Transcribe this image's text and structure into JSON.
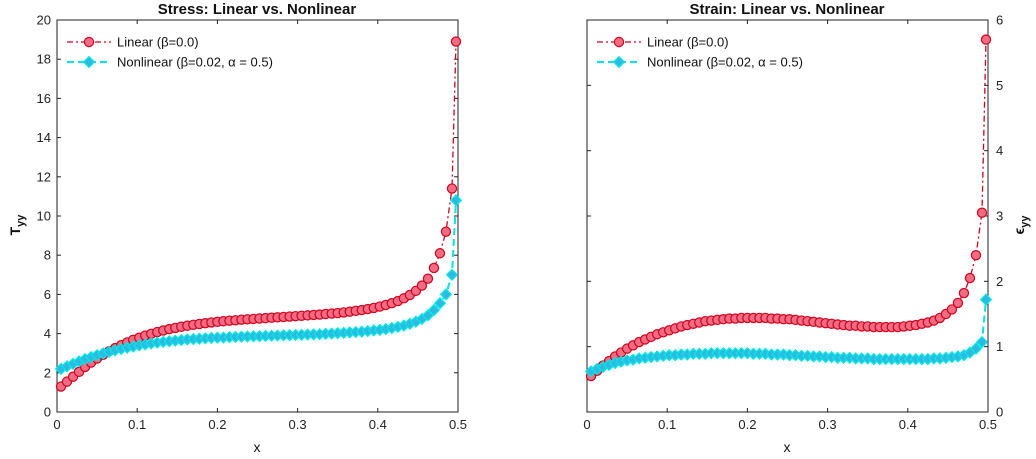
{
  "chart_data": [
    {
      "type": "line",
      "title": "Stress: Linear vs. Nonlinear",
      "xlabel": "x",
      "ylabel": "T",
      "ylabel_sub": "yy",
      "xlim": [
        0,
        0.5
      ],
      "ylim": [
        0,
        20
      ],
      "xticks": [
        "0",
        "0.1",
        "0.2",
        "0.3",
        "0.4",
        "0.5"
      ],
      "yticks": [
        "0",
        "2",
        "4",
        "6",
        "8",
        "10",
        "12",
        "14",
        "16",
        "18",
        "20"
      ],
      "legend_position": "top-left",
      "grid": false,
      "y_axis_side": "left",
      "series": [
        {
          "name": "Linear (β=0.0)",
          "color": "#d0021b",
          "marker_fill": "#f06c84",
          "marker": "circle",
          "line_style": "dash-dot",
          "x": [
            0.005,
            0.0125,
            0.02,
            0.0275,
            0.035,
            0.0425,
            0.05,
            0.0575,
            0.065,
            0.0725,
            0.08,
            0.0875,
            0.095,
            0.1025,
            0.11,
            0.1175,
            0.125,
            0.1325,
            0.14,
            0.1475,
            0.155,
            0.1625,
            0.17,
            0.1775,
            0.185,
            0.1925,
            0.2,
            0.2075,
            0.215,
            0.2225,
            0.23,
            0.2375,
            0.245,
            0.2525,
            0.26,
            0.2675,
            0.275,
            0.2825,
            0.29,
            0.2975,
            0.305,
            0.3125,
            0.32,
            0.3275,
            0.335,
            0.3425,
            0.35,
            0.3575,
            0.365,
            0.3725,
            0.38,
            0.3875,
            0.395,
            0.4025,
            0.41,
            0.4175,
            0.425,
            0.4325,
            0.44,
            0.4475,
            0.455,
            0.4625,
            0.47,
            0.4775,
            0.485,
            0.4925,
            0.4975
          ],
          "y": [
            1.3,
            1.55,
            1.8,
            2.05,
            2.3,
            2.52,
            2.73,
            2.92,
            3.1,
            3.26,
            3.41,
            3.55,
            3.68,
            3.79,
            3.9,
            3.99,
            4.08,
            4.16,
            4.23,
            4.29,
            4.35,
            4.4,
            4.45,
            4.49,
            4.53,
            4.57,
            4.6,
            4.63,
            4.66,
            4.68,
            4.71,
            4.73,
            4.75,
            4.77,
            4.79,
            4.81,
            4.83,
            4.85,
            4.87,
            4.89,
            4.91,
            4.93,
            4.95,
            4.97,
            5.0,
            5.02,
            5.05,
            5.08,
            5.12,
            5.16,
            5.2,
            5.25,
            5.31,
            5.38,
            5.46,
            5.55,
            5.66,
            5.8,
            5.97,
            6.18,
            6.45,
            6.8,
            7.35,
            8.1,
            9.2,
            11.4,
            18.9
          ]
        },
        {
          "name": "Nonlinear (β=0.02, α = 0.5)",
          "color": "#00e5e5",
          "marker_fill": "#30b8e0",
          "marker": "diamond",
          "line_style": "dashed",
          "x": [
            0.005,
            0.0125,
            0.02,
            0.0275,
            0.035,
            0.0425,
            0.05,
            0.0575,
            0.065,
            0.0725,
            0.08,
            0.0875,
            0.095,
            0.1025,
            0.11,
            0.1175,
            0.125,
            0.1325,
            0.14,
            0.1475,
            0.155,
            0.1625,
            0.17,
            0.1775,
            0.185,
            0.1925,
            0.2,
            0.2075,
            0.215,
            0.2225,
            0.23,
            0.2375,
            0.245,
            0.2525,
            0.26,
            0.2675,
            0.275,
            0.2825,
            0.29,
            0.2975,
            0.305,
            0.3125,
            0.32,
            0.3275,
            0.335,
            0.3425,
            0.35,
            0.3575,
            0.365,
            0.3725,
            0.38,
            0.3875,
            0.395,
            0.4025,
            0.41,
            0.4175,
            0.425,
            0.4325,
            0.44,
            0.4475,
            0.455,
            0.4625,
            0.47,
            0.4775,
            0.485,
            0.4925,
            0.4975
          ],
          "y": [
            2.2,
            2.33,
            2.46,
            2.58,
            2.7,
            2.8,
            2.9,
            2.99,
            3.07,
            3.15,
            3.22,
            3.28,
            3.34,
            3.4,
            3.45,
            3.5,
            3.54,
            3.58,
            3.61,
            3.64,
            3.67,
            3.7,
            3.72,
            3.74,
            3.76,
            3.78,
            3.79,
            3.8,
            3.82,
            3.83,
            3.84,
            3.85,
            3.86,
            3.87,
            3.88,
            3.89,
            3.9,
            3.91,
            3.92,
            3.93,
            3.94,
            3.95,
            3.96,
            3.97,
            3.99,
            4.0,
            4.02,
            4.04,
            4.06,
            4.08,
            4.1,
            4.13,
            4.16,
            4.19,
            4.23,
            4.28,
            4.34,
            4.41,
            4.5,
            4.61,
            4.75,
            4.93,
            5.2,
            5.55,
            6.0,
            7.0,
            10.8
          ]
        }
      ]
    },
    {
      "type": "line",
      "title": "Strain: Linear vs. Nonlinear",
      "xlabel": "x",
      "ylabel": "ϵ",
      "ylabel_sub": "yy",
      "xlim": [
        0,
        0.5
      ],
      "ylim": [
        0,
        6
      ],
      "xticks": [
        "0",
        "0.1",
        "0.2",
        "0.3",
        "0.4",
        "0.5"
      ],
      "yticks": [
        "0",
        "1",
        "2",
        "3",
        "4",
        "5",
        "6"
      ],
      "legend_position": "top-left",
      "grid": false,
      "y_axis_side": "right",
      "series": [
        {
          "name": "Linear (β=0.0)",
          "color": "#d0021b",
          "marker_fill": "#f06c84",
          "marker": "circle",
          "line_style": "dash-dot",
          "x": [
            0.005,
            0.0125,
            0.02,
            0.0275,
            0.035,
            0.0425,
            0.05,
            0.0575,
            0.065,
            0.0725,
            0.08,
            0.0875,
            0.095,
            0.1025,
            0.11,
            0.1175,
            0.125,
            0.1325,
            0.14,
            0.1475,
            0.155,
            0.1625,
            0.17,
            0.1775,
            0.185,
            0.1925,
            0.2,
            0.2075,
            0.215,
            0.2225,
            0.23,
            0.2375,
            0.245,
            0.2525,
            0.26,
            0.2675,
            0.275,
            0.2825,
            0.29,
            0.2975,
            0.305,
            0.3125,
            0.32,
            0.3275,
            0.335,
            0.3425,
            0.35,
            0.3575,
            0.365,
            0.3725,
            0.38,
            0.3875,
            0.395,
            0.4025,
            0.41,
            0.4175,
            0.425,
            0.4325,
            0.44,
            0.4475,
            0.455,
            0.4625,
            0.47,
            0.4775,
            0.485,
            0.4925,
            0.4975
          ],
          "y": [
            0.55,
            0.63,
            0.71,
            0.78,
            0.85,
            0.91,
            0.97,
            1.02,
            1.07,
            1.11,
            1.15,
            1.19,
            1.22,
            1.25,
            1.28,
            1.31,
            1.33,
            1.35,
            1.37,
            1.39,
            1.4,
            1.41,
            1.42,
            1.43,
            1.43,
            1.44,
            1.44,
            1.44,
            1.44,
            1.44,
            1.43,
            1.43,
            1.42,
            1.42,
            1.41,
            1.4,
            1.39,
            1.38,
            1.37,
            1.36,
            1.35,
            1.34,
            1.33,
            1.32,
            1.32,
            1.31,
            1.31,
            1.3,
            1.3,
            1.3,
            1.3,
            1.3,
            1.31,
            1.32,
            1.33,
            1.35,
            1.37,
            1.4,
            1.44,
            1.5,
            1.57,
            1.67,
            1.82,
            2.05,
            2.4,
            3.05,
            5.7
          ]
        },
        {
          "name": "Nonlinear (β=0.02, α = 0.5)",
          "color": "#00e5e5",
          "marker_fill": "#30b8e0",
          "marker": "diamond",
          "line_style": "dashed",
          "x": [
            0.005,
            0.0125,
            0.02,
            0.0275,
            0.035,
            0.0425,
            0.05,
            0.0575,
            0.065,
            0.0725,
            0.08,
            0.0875,
            0.095,
            0.1025,
            0.11,
            0.1175,
            0.125,
            0.1325,
            0.14,
            0.1475,
            0.155,
            0.1625,
            0.17,
            0.1775,
            0.185,
            0.1925,
            0.2,
            0.2075,
            0.215,
            0.2225,
            0.23,
            0.2375,
            0.245,
            0.2525,
            0.26,
            0.2675,
            0.275,
            0.2825,
            0.29,
            0.2975,
            0.305,
            0.3125,
            0.32,
            0.3275,
            0.335,
            0.3425,
            0.35,
            0.3575,
            0.365,
            0.3725,
            0.38,
            0.3875,
            0.395,
            0.4025,
            0.41,
            0.4175,
            0.425,
            0.4325,
            0.44,
            0.4475,
            0.455,
            0.4625,
            0.47,
            0.4775,
            0.485,
            0.4925,
            0.4975
          ],
          "y": [
            0.62,
            0.66,
            0.69,
            0.72,
            0.75,
            0.77,
            0.79,
            0.8,
            0.82,
            0.83,
            0.84,
            0.85,
            0.86,
            0.87,
            0.87,
            0.88,
            0.88,
            0.89,
            0.89,
            0.89,
            0.9,
            0.9,
            0.9,
            0.9,
            0.9,
            0.9,
            0.9,
            0.89,
            0.89,
            0.89,
            0.88,
            0.88,
            0.88,
            0.87,
            0.87,
            0.86,
            0.86,
            0.85,
            0.85,
            0.84,
            0.84,
            0.83,
            0.83,
            0.83,
            0.82,
            0.82,
            0.82,
            0.81,
            0.81,
            0.81,
            0.81,
            0.81,
            0.81,
            0.81,
            0.81,
            0.81,
            0.81,
            0.82,
            0.82,
            0.83,
            0.84,
            0.85,
            0.87,
            0.91,
            0.97,
            1.07,
            1.72
          ]
        }
      ]
    }
  ]
}
